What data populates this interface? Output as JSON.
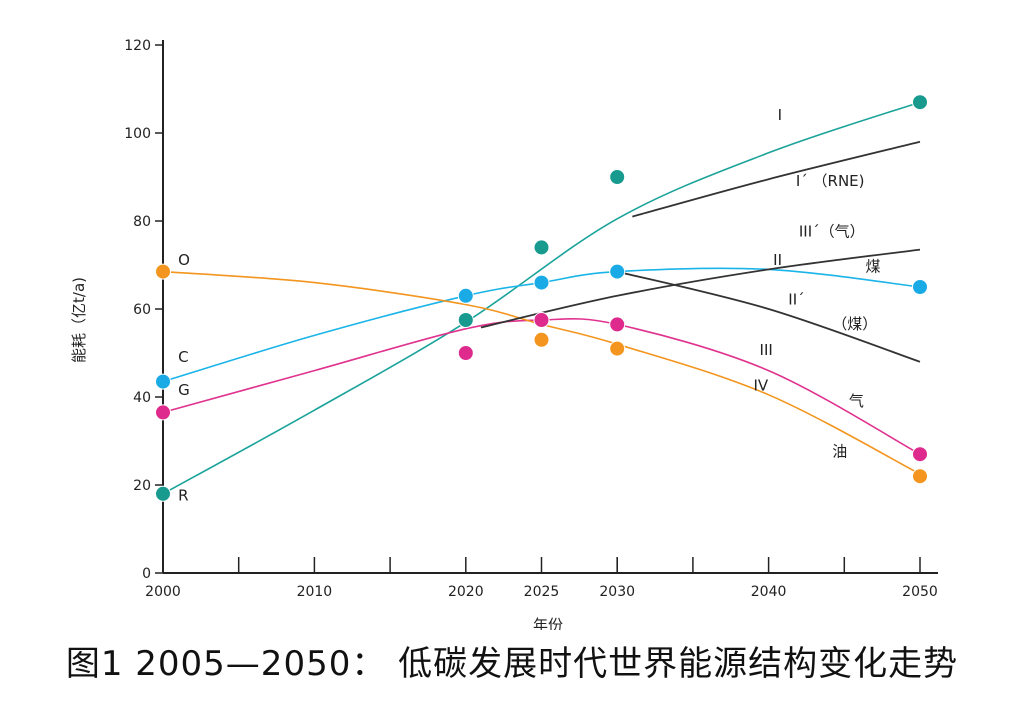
{
  "chart_data": {
    "type": "line",
    "caption": "图1 2005—2050： 低碳发展时代世界能源结构变化走势",
    "xlabel": "年份",
    "ylabel": "能耗（亿t/a)",
    "xlim": [
      2000,
      2050
    ],
    "ylim": [
      0,
      120
    ],
    "x_tick_labels": [
      2000,
      2010,
      2020,
      2025,
      2030,
      2040,
      2050
    ],
    "x_minor_ticks": [
      2005,
      2015,
      2030,
      2035,
      2045
    ],
    "y_ticks": [
      0,
      20,
      40,
      60,
      80,
      100,
      120
    ],
    "grid": false,
    "colors": {
      "teal": "#1aa39a",
      "blue": "#1ab4e8",
      "pink": "#e0338f",
      "orange": "#f3951e",
      "black": "#333333"
    },
    "series": [
      {
        "name": "R",
        "color": "#1aa39a",
        "marker_color": "#199a8f",
        "curve": [
          [
            2000,
            18
          ],
          [
            2010,
            37
          ],
          [
            2020,
            57
          ],
          [
            2030,
            80.5
          ],
          [
            2040,
            95.5
          ],
          [
            2050,
            107
          ]
        ],
        "points": [
          [
            2000,
            18
          ],
          [
            2020,
            57.5
          ],
          [
            2025,
            74
          ],
          [
            2030,
            90
          ],
          [
            2050,
            107
          ]
        ]
      },
      {
        "name": "C",
        "color": "#1ab4e8",
        "marker_color": "#1aaae6",
        "curve": [
          [
            2000,
            43.5
          ],
          [
            2010,
            54
          ],
          [
            2020,
            63
          ],
          [
            2025,
            66
          ],
          [
            2030,
            68.5
          ],
          [
            2040,
            69
          ],
          [
            2050,
            65
          ]
        ],
        "points": [
          [
            2000,
            43.5
          ],
          [
            2020,
            63
          ],
          [
            2025,
            66
          ],
          [
            2030,
            68.5
          ],
          [
            2050,
            65
          ]
        ]
      },
      {
        "name": "G",
        "color": "#e0338f",
        "marker_color": "#de2a8c",
        "curve": [
          [
            2000,
            36.5
          ],
          [
            2010,
            46
          ],
          [
            2020,
            55.5
          ],
          [
            2025,
            57.5
          ],
          [
            2030,
            56.5
          ],
          [
            2040,
            46
          ],
          [
            2050,
            27
          ]
        ],
        "points": [
          [
            2000,
            36.5
          ],
          [
            2020,
            50
          ],
          [
            2025,
            57.5
          ],
          [
            2030,
            56.5
          ],
          [
            2050,
            27
          ]
        ]
      },
      {
        "name": "O",
        "color": "#f3951e",
        "marker_color": "#f3951e",
        "curve": [
          [
            2000,
            68.5
          ],
          [
            2010,
            66
          ],
          [
            2020,
            61
          ],
          [
            2025,
            56.5
          ],
          [
            2030,
            52
          ],
          [
            2040,
            40.5
          ],
          [
            2050,
            22.5
          ]
        ],
        "points": [
          [
            2000,
            68.5
          ],
          [
            2025,
            53
          ],
          [
            2030,
            51
          ],
          [
            2050,
            22
          ]
        ]
      },
      {
        "name": "",
        "color": "#333333",
        "curve": [
          [
            2031,
            81
          ],
          [
            2040,
            89.5
          ],
          [
            2050,
            98
          ]
        ]
      },
      {
        "name": "",
        "color": "#333333",
        "curve": [
          [
            2021,
            55.8
          ],
          [
            2030,
            63
          ],
          [
            2040,
            69
          ],
          [
            2050,
            73.5
          ]
        ]
      },
      {
        "name": "",
        "color": "#333333",
        "curve": [
          [
            2030,
            68.5
          ],
          [
            2040,
            60
          ],
          [
            2050,
            48
          ]
        ]
      }
    ],
    "annotations": [
      {
        "text": "O",
        "x": 2001,
        "y": 70
      },
      {
        "text": "C",
        "x": 2001,
        "y": 48
      },
      {
        "text": "G",
        "x": 2001,
        "y": 40.5
      },
      {
        "text": "R",
        "x": 2001,
        "y": 16.5
      },
      {
        "text": "I",
        "x": 2040.6,
        "y": 103
      },
      {
        "text": "I´ （RNE)",
        "x": 2041.8,
        "y": 88
      },
      {
        "text": "III´（气）",
        "x": 2042,
        "y": 76.5
      },
      {
        "text": "II",
        "x": 2040.3,
        "y": 70
      },
      {
        "text": "煤",
        "x": 2046.4,
        "y": 68.5
      },
      {
        "text": "II´",
        "x": 2041.3,
        "y": 61
      },
      {
        "text": "（煤）",
        "x": 2044.2,
        "y": 55.5
      },
      {
        "text": "III",
        "x": 2039.4,
        "y": 49.5
      },
      {
        "text": "IV",
        "x": 2039,
        "y": 41.5
      },
      {
        "text": "气",
        "x": 2045.3,
        "y": 38
      },
      {
        "text": "油",
        "x": 2044.2,
        "y": 26.5
      }
    ]
  }
}
